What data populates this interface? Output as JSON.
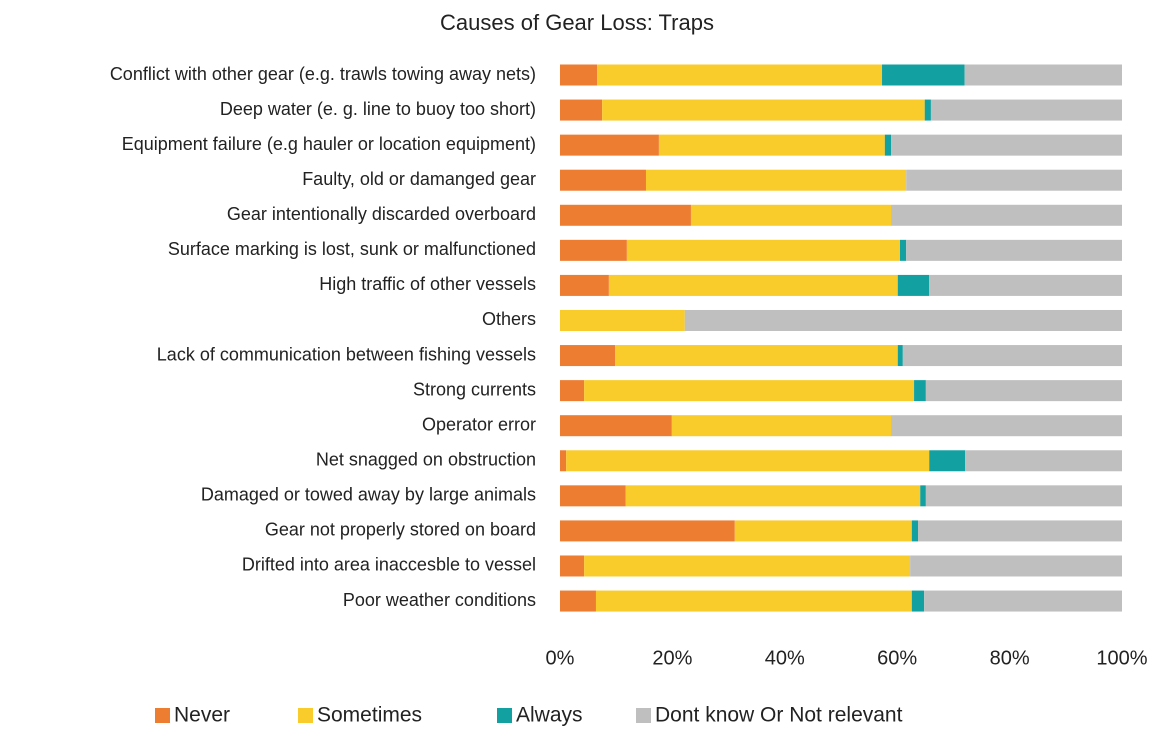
{
  "chart_data": {
    "type": "stacked-bar-horizontal",
    "title": "Causes of Gear Loss: Traps",
    "categories": [
      "Conflict with other gear (e.g. trawls towing away nets)",
      "Deep water (e. g. line to buoy too short)",
      "Equipment failure (e.g hauler or location equipment)",
      "Faulty, old or damanged gear",
      "Gear intentionally discarded overboard",
      "Surface marking is lost, sunk or malfunctioned",
      "High traffic of other vessels",
      "Others",
      "Lack of communication between fishing vessels",
      "Strong currents",
      "Operator error",
      "Net snagged on obstruction",
      "Damaged or towed away by large animals",
      "Gear not properly stored on board",
      "Drifted into area inaccesble to vessel",
      "Poor weather conditions"
    ],
    "series": [
      {
        "name": "Never",
        "color": "#ED7D31",
        "values": [
          6.6,
          7.5,
          17.6,
          15.3,
          23.3,
          11.9,
          8.7,
          0,
          9.8,
          4.3,
          19.9,
          1.1,
          11.7,
          31.1,
          4.3,
          6.4
        ]
      },
      {
        "name": "Sometimes",
        "color": "#F9CB2B",
        "values": [
          50.7,
          57.4,
          40.2,
          46.3,
          35.6,
          48.6,
          51.4,
          22.2,
          50.3,
          58.7,
          39.0,
          64.6,
          52.4,
          31.5,
          58.0,
          56.2
        ]
      },
      {
        "name": "Always",
        "color": "#12A0A0",
        "values": [
          14.7,
          1.1,
          1.1,
          0,
          0,
          1.1,
          5.6,
          0,
          0.9,
          2.1,
          0,
          6.4,
          1.0,
          1.1,
          0,
          2.2
        ]
      },
      {
        "name": "Dont know Or Not relevant",
        "color": "#BFBFBF",
        "values": [
          28.0,
          34.0,
          41.1,
          38.4,
          41.1,
          38.4,
          34.3,
          77.8,
          39.0,
          34.9,
          41.1,
          27.9,
          34.9,
          36.3,
          37.7,
          35.2
        ]
      }
    ],
    "xlim": [
      0,
      100
    ],
    "xticks": [
      {
        "value": 0,
        "label": "0%"
      },
      {
        "value": 20,
        "label": "20%"
      },
      {
        "value": 40,
        "label": "40%"
      },
      {
        "value": 60,
        "label": "60%"
      },
      {
        "value": 80,
        "label": "80%"
      },
      {
        "value": 100,
        "label": "100%"
      }
    ],
    "legend": "bottom"
  }
}
